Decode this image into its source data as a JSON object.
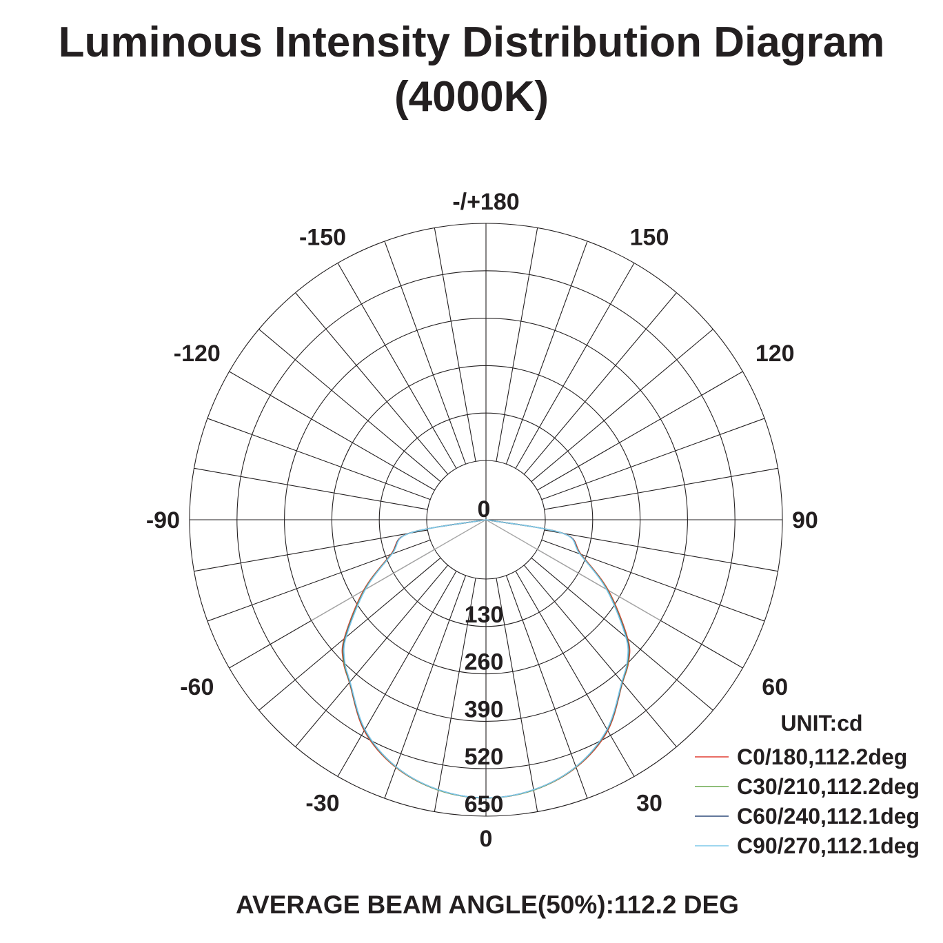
{
  "title_line1": "Luminous Intensity Distribution Diagram",
  "title_line2": "(4000K)",
  "footer": "AVERAGE BEAM ANGLE(50%):112.2 DEG",
  "chart_data": {
    "type": "polar",
    "unit_label": "UNIT:cd",
    "angle_labels": [
      {
        "text": "-/+180",
        "deg": 180
      },
      {
        "text": "150",
        "deg": 150
      },
      {
        "text": "-150",
        "deg": -150
      },
      {
        "text": "120",
        "deg": 120
      },
      {
        "text": "-120",
        "deg": -120
      },
      {
        "text": "90",
        "deg": 90
      },
      {
        "text": "-90",
        "deg": -90
      },
      {
        "text": "60",
        "deg": 60
      },
      {
        "text": "-60",
        "deg": -60
      },
      {
        "text": "30",
        "deg": 30
      },
      {
        "text": "-30",
        "deg": -30
      },
      {
        "text": "0",
        "deg": 0
      }
    ],
    "radial_max": 650,
    "radial_ticks": [
      0,
      130,
      260,
      390,
      520,
      650
    ],
    "radial_tick_labels": [
      "0",
      "130",
      "260",
      "390",
      "520",
      "650"
    ],
    "angular_grid_step_deg": 10,
    "grid": true,
    "legend_position": "bottom-right",
    "series": [
      {
        "name": "C0/180,112.2deg",
        "color": "#e03c31",
        "angles": [
          -90,
          -80,
          -70,
          -60,
          -50,
          -45,
          -40,
          -30,
          -20,
          -10,
          0,
          10,
          20,
          30,
          40,
          45,
          50,
          60,
          70,
          80,
          90
        ],
        "values": [
          0,
          53,
          115,
          225,
          345,
          390,
          420,
          505,
          560,
          590,
          600,
          590,
          560,
          505,
          420,
          390,
          345,
          225,
          115,
          53,
          0
        ]
      },
      {
        "name": "C30/210,112.2deg",
        "color": "#6aa84f",
        "angles": [
          -90,
          -80,
          -70,
          -60,
          -50,
          -45,
          -40,
          -30,
          -20,
          -10,
          0,
          10,
          20,
          30,
          40,
          45,
          50,
          60,
          70,
          80,
          90
        ],
        "values": [
          0,
          52,
          113,
          222,
          342,
          388,
          419,
          503,
          559,
          590,
          600,
          590,
          559,
          503,
          419,
          388,
          342,
          222,
          113,
          52,
          0
        ]
      },
      {
        "name": "C60/240,112.1deg",
        "color": "#2f4a7a",
        "angles": [
          -90,
          -80,
          -70,
          -60,
          -50,
          -45,
          -40,
          -30,
          -20,
          -10,
          0,
          10,
          20,
          30,
          40,
          45,
          50,
          60,
          70,
          80,
          90
        ],
        "values": [
          0,
          52,
          112,
          220,
          340,
          386,
          418,
          502,
          558,
          589,
          600,
          589,
          558,
          502,
          418,
          386,
          340,
          220,
          112,
          52,
          0
        ]
      },
      {
        "name": "C90/270,112.1deg",
        "color": "#7fc8e8",
        "angles": [
          -90,
          -80,
          -70,
          -60,
          -50,
          -45,
          -40,
          -30,
          -20,
          -10,
          0,
          10,
          20,
          30,
          40,
          45,
          50,
          60,
          70,
          80,
          90
        ],
        "values": [
          0,
          51,
          111,
          219,
          338,
          385,
          417,
          501,
          558,
          589,
          600,
          589,
          558,
          501,
          417,
          385,
          338,
          219,
          111,
          51,
          0
        ]
      }
    ],
    "reference_lines": {
      "color": "#a6a6a6",
      "angles_deg": [
        -60,
        60
      ],
      "value": 390
    }
  }
}
